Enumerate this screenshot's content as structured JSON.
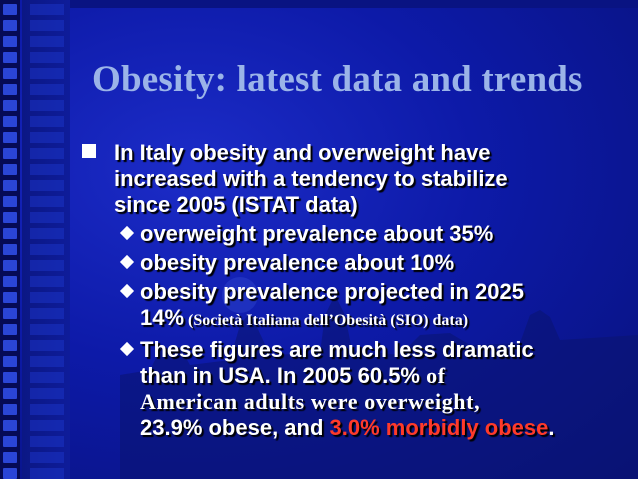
{
  "slide": {
    "title": "Obesity: latest data and trends",
    "intro_part1": "In Italy obesity and overweight have",
    "intro_part2": "increased with a tendency to stabilize",
    "intro_part3": "since 2005 (ISTAT data)",
    "b1": "overweight  prevalence about 35%",
    "b2": "obesity prevalence about 10%",
    "b3_line1": "obesity prevalence projected in 2025",
    "b3_pct": "14%",
    "b3_paren_open": " (",
    "b3_source": "Società Italiana dell’Obesità (SIO) data)",
    "b4_line1": "These figures are much less dramatic",
    "b4_line2a": "than in USA.  In 2005 60.5% ",
    "b4_line2b": "of",
    "b4_line3": "American adults were overweight,",
    "b4_line4a": "23.9% obese, and ",
    "b4_line4b": "3.0% morbidly obese",
    "b4_line4c": "."
  },
  "colors": {
    "background": "#0d1aa8",
    "title": "#9bb4e8",
    "text": "#ffffff",
    "highlight": "#ff3a2a"
  }
}
